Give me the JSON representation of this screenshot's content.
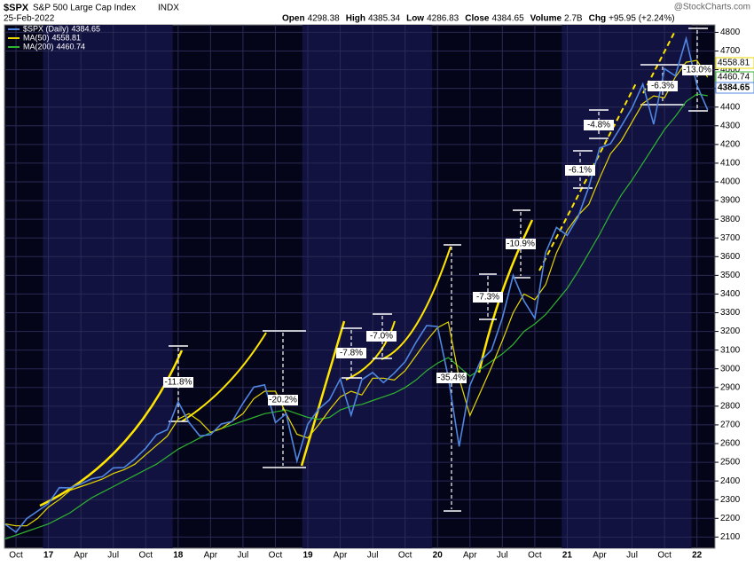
{
  "chart_data": {
    "type": "line",
    "symbol": "$SPX",
    "title": "S&P 500 Large Cap Index",
    "exchange": "INDX",
    "date": "25-Feb-2022",
    "watermark": "@StockCharts.com",
    "quote": [
      {
        "label": "Open",
        "value": "4298.38"
      },
      {
        "label": "High",
        "value": "4385.34"
      },
      {
        "label": "Low",
        "value": "4286.83"
      },
      {
        "label": "Close",
        "value": "4384.65"
      },
      {
        "label": "Volume",
        "value": "2.7B"
      },
      {
        "label": "Chg",
        "value": "+95.95 (+2.24%)"
      }
    ],
    "categories": [
      null,
      "Oct",
      null,
      null,
      "17",
      null,
      null,
      "Apr",
      null,
      null,
      "Jul",
      null,
      null,
      "Oct",
      null,
      null,
      "18",
      null,
      null,
      "Apr",
      null,
      null,
      "Jul",
      null,
      null,
      "Oct",
      null,
      null,
      "19",
      null,
      null,
      "Apr",
      null,
      null,
      "Jul",
      null,
      null,
      "Oct",
      null,
      null,
      "20",
      null,
      null,
      "Apr",
      null,
      null,
      "Jul",
      null,
      null,
      "Oct",
      null,
      null,
      "21",
      null,
      null,
      "Apr",
      null,
      null,
      "Jul",
      null,
      null,
      "Oct",
      null,
      null,
      "22",
      null
    ],
    "series": [
      {
        "name": "$SPX (Daily)",
        "last": 4384.65,
        "color": "#4f86e0",
        "values": [
          2168,
          2126,
          2199,
          2239,
          2279,
          2364,
          2363,
          2384,
          2412,
          2423,
          2470,
          2472,
          2519,
          2575,
          2648,
          2674,
          2824,
          2714,
          2641,
          2648,
          2705,
          2718,
          2816,
          2902,
          2914,
          2712,
          2760,
          2507,
          2704,
          2784,
          2834,
          2946,
          2752,
          2942,
          2980,
          2926,
          2977,
          3038,
          3141,
          3231,
          3226,
          2954,
          2585,
          2912,
          3044,
          3100,
          3271,
          3500,
          3363,
          3270,
          3622,
          3756,
          3714,
          3811,
          3973,
          4181,
          4204,
          4298,
          4395,
          4523,
          4308,
          4605,
          4567,
          4766,
          4516,
          4385
        ]
      },
      {
        "name": "MA(50)",
        "last": 4558.81,
        "color": "#e8d800",
        "values": [
          2170,
          2160,
          2160,
          2200,
          2260,
          2300,
          2350,
          2370,
          2390,
          2410,
          2440,
          2460,
          2490,
          2540,
          2590,
          2640,
          2730,
          2760,
          2720,
          2660,
          2680,
          2720,
          2760,
          2840,
          2880,
          2880,
          2760,
          2650,
          2630,
          2700,
          2780,
          2850,
          2880,
          2860,
          2950,
          2950,
          2940,
          2990,
          3070,
          3150,
          3220,
          3250,
          2950,
          2750,
          2880,
          3010,
          3150,
          3300,
          3400,
          3370,
          3450,
          3620,
          3740,
          3820,
          3880,
          4020,
          4150,
          4220,
          4320,
          4420,
          4460,
          4450,
          4560,
          4640,
          4650,
          4559
        ]
      },
      {
        "name": "MA(200)",
        "last": 4460.74,
        "color": "#2fb52f",
        "values": [
          2090,
          2110,
          2130,
          2150,
          2170,
          2200,
          2230,
          2270,
          2310,
          2340,
          2370,
          2400,
          2430,
          2460,
          2490,
          2530,
          2570,
          2600,
          2630,
          2660,
          2680,
          2700,
          2720,
          2740,
          2760,
          2770,
          2780,
          2760,
          2740,
          2730,
          2740,
          2780,
          2800,
          2810,
          2830,
          2850,
          2870,
          2900,
          2940,
          2990,
          3030,
          3060,
          3010,
          2960,
          3000,
          3040,
          3080,
          3130,
          3200,
          3240,
          3290,
          3360,
          3430,
          3520,
          3620,
          3720,
          3830,
          3930,
          4010,
          4100,
          4190,
          4280,
          4350,
          4430,
          4470,
          4461
        ]
      }
    ],
    "ylim": [
      2040,
      4840
    ],
    "yticks": [
      2100,
      2200,
      2300,
      2400,
      2500,
      2600,
      2700,
      2800,
      2900,
      3000,
      3100,
      3200,
      3300,
      3400,
      3500,
      3600,
      3700,
      3800,
      3900,
      4000,
      4100,
      4200,
      4300,
      4400,
      4500,
      4600,
      4700,
      4800
    ],
    "grid": true,
    "annotations": [
      "-11.8%",
      "-20.2%",
      "-7.8%",
      "-7.0%",
      "-35.4%",
      "-7.3%",
      "-10.9%",
      "-6.1%",
      "-4.8%",
      "-6.3%",
      "-13.0%"
    ]
  }
}
